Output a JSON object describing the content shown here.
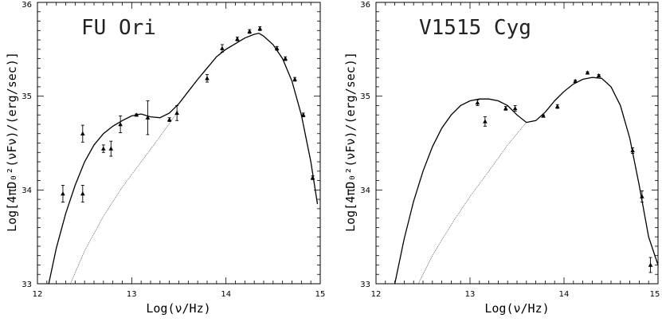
{
  "chart_data": [
    {
      "type": "scatter",
      "title": "FU Ori",
      "xlabel": "Log(ν/Hz)",
      "ylabel": "Log[4πD₀²(νFν)/(erg/sec)]",
      "xlim": [
        12,
        15
      ],
      "ylim": [
        33,
        36
      ],
      "xticks": [
        "12",
        "13",
        "14",
        "15"
      ],
      "yticks": [
        "33",
        "34",
        "35",
        "36"
      ],
      "grid": false,
      "legend": "none",
      "points": [
        {
          "x": 12.27,
          "y": 33.96,
          "err": 0.09
        },
        {
          "x": 12.48,
          "y": 34.6,
          "err": 0.09
        },
        {
          "x": 12.48,
          "y": 33.96,
          "err": 0.09
        },
        {
          "x": 12.7,
          "y": 34.44,
          "err": 0.04
        },
        {
          "x": 12.78,
          "y": 34.44,
          "err": 0.08
        },
        {
          "x": 12.88,
          "y": 34.7,
          "err": 0.09
        },
        {
          "x": 13.05,
          "y": 34.8,
          "err": 0.01
        },
        {
          "x": 13.17,
          "y": 34.77,
          "err": 0.18
        },
        {
          "x": 13.4,
          "y": 34.75,
          "err": 0.02
        },
        {
          "x": 13.48,
          "y": 34.82,
          "err": 0.08
        },
        {
          "x": 13.8,
          "y": 35.19,
          "err": 0.04
        },
        {
          "x": 13.96,
          "y": 35.51,
          "err": 0.04
        },
        {
          "x": 14.12,
          "y": 35.61,
          "err": 0.02
        },
        {
          "x": 14.25,
          "y": 35.69,
          "err": 0.02
        },
        {
          "x": 14.36,
          "y": 35.72,
          "err": 0.02
        },
        {
          "x": 14.54,
          "y": 35.51,
          "err": 0.02
        },
        {
          "x": 14.63,
          "y": 35.4,
          "err": 0.02
        },
        {
          "x": 14.73,
          "y": 35.18,
          "err": 0.02
        },
        {
          "x": 14.82,
          "y": 34.8,
          "err": 0.02
        },
        {
          "x": 14.92,
          "y": 34.13,
          "err": 0.02
        }
      ],
      "series": [
        {
          "style": "solid",
          "x": [
            12.12,
            12.2,
            12.3,
            12.4,
            12.5,
            12.6,
            12.7,
            12.8,
            12.9,
            13.0,
            13.1,
            13.2,
            13.3,
            13.4,
            13.5,
            13.6,
            13.7,
            13.8,
            13.9,
            14.0,
            14.1,
            14.2,
            14.3,
            14.35,
            14.4,
            14.5,
            14.6,
            14.7,
            14.8,
            14.9,
            14.97
          ],
          "y": [
            33.0,
            33.38,
            33.75,
            34.05,
            34.3,
            34.48,
            34.6,
            34.68,
            34.74,
            34.79,
            34.81,
            34.78,
            34.77,
            34.82,
            34.92,
            35.05,
            35.18,
            35.3,
            35.42,
            35.5,
            35.56,
            35.62,
            35.66,
            35.67,
            35.64,
            35.55,
            35.4,
            35.16,
            34.8,
            34.3,
            33.85
          ]
        },
        {
          "style": "dotted",
          "x": [
            12.35,
            12.5,
            12.7,
            12.9,
            13.1,
            13.3,
            13.5
          ],
          "y": [
            33.0,
            33.35,
            33.72,
            34.03,
            34.3,
            34.57,
            34.85
          ]
        }
      ]
    },
    {
      "type": "scatter",
      "title": "V1515 Cyg",
      "xlabel": "Log(ν/Hz)",
      "ylabel": "Log[4πD₀²(νFν)/(erg/sec)]",
      "xlim": [
        12,
        15
      ],
      "ylim": [
        33,
        36
      ],
      "xticks": [
        "12",
        "13",
        "14",
        "15"
      ],
      "yticks": [
        "33",
        "34",
        "35",
        "36"
      ],
      "grid": false,
      "legend": "none",
      "points": [
        {
          "x": 13.08,
          "y": 34.93,
          "err": 0.03
        },
        {
          "x": 13.16,
          "y": 34.73,
          "err": 0.05
        },
        {
          "x": 13.38,
          "y": 34.87,
          "err": 0.02
        },
        {
          "x": 13.48,
          "y": 34.87,
          "err": 0.03
        },
        {
          "x": 13.78,
          "y": 34.79,
          "err": 0.01
        },
        {
          "x": 13.93,
          "y": 34.89,
          "err": 0.02
        },
        {
          "x": 14.12,
          "y": 35.16,
          "err": 0.01
        },
        {
          "x": 14.25,
          "y": 35.25,
          "err": 0.01
        },
        {
          "x": 14.37,
          "y": 35.22,
          "err": 0.01
        },
        {
          "x": 14.73,
          "y": 34.42,
          "err": 0.03
        },
        {
          "x": 14.83,
          "y": 33.93,
          "err": 0.06
        },
        {
          "x": 14.92,
          "y": 33.2,
          "err": 0.08
        }
      ],
      "series": [
        {
          "style": "solid",
          "x": [
            12.2,
            12.3,
            12.4,
            12.5,
            12.6,
            12.7,
            12.8,
            12.9,
            13.0,
            13.1,
            13.2,
            13.3,
            13.4,
            13.5,
            13.6,
            13.7,
            13.8,
            13.9,
            14.0,
            14.1,
            14.2,
            14.3,
            14.4,
            14.5,
            14.6,
            14.7,
            14.8,
            14.9,
            15.0
          ],
          "y": [
            33.0,
            33.48,
            33.88,
            34.2,
            34.46,
            34.66,
            34.8,
            34.9,
            34.95,
            34.97,
            34.97,
            34.95,
            34.9,
            34.8,
            34.72,
            34.74,
            34.83,
            34.95,
            35.05,
            35.13,
            35.18,
            35.2,
            35.19,
            35.1,
            34.9,
            34.55,
            34.05,
            33.5,
            33.2
          ]
        },
        {
          "style": "dotted",
          "x": [
            12.45,
            12.6,
            12.8,
            13.0,
            13.2,
            13.4,
            13.6
          ],
          "y": [
            33.0,
            33.3,
            33.63,
            33.93,
            34.2,
            34.48,
            34.72
          ]
        }
      ]
    }
  ]
}
